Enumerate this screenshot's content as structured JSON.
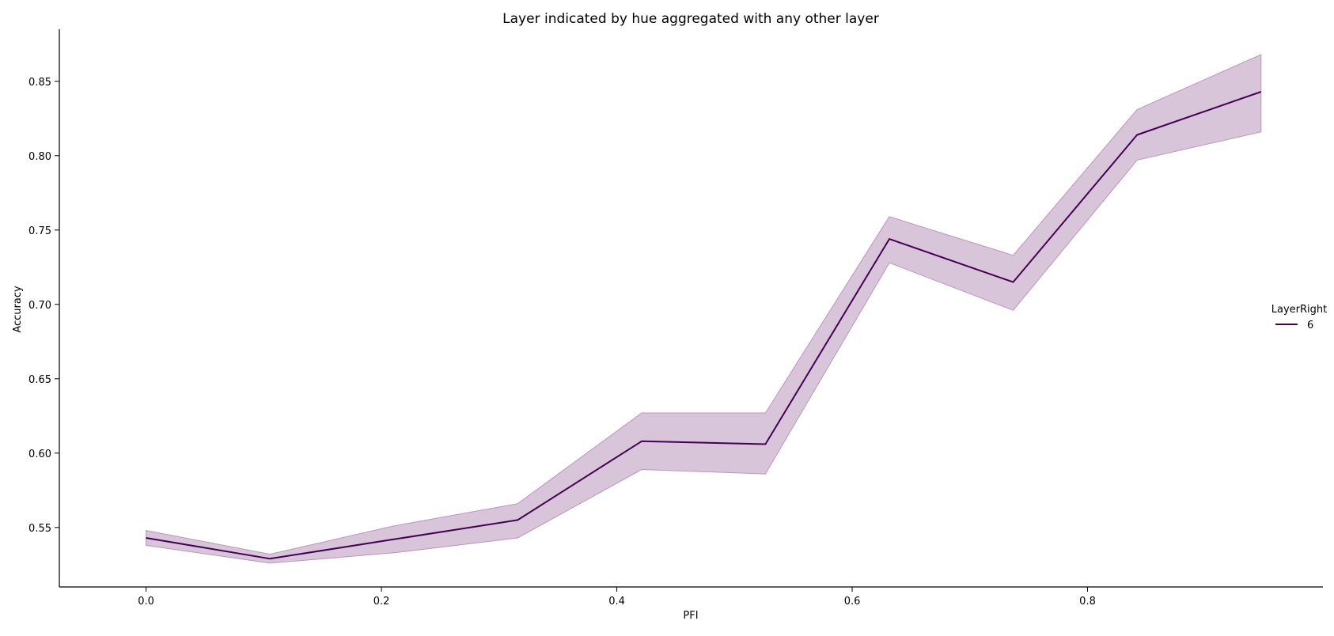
{
  "chart_data": {
    "type": "line",
    "title": "Layer indicated by hue aggregated with any other layer",
    "xlabel": "PFI",
    "ylabel": "Accuracy",
    "xlim": [
      -0.0737,
      1.0
    ],
    "ylim": [
      0.51,
      0.885
    ],
    "xticks": [
      0.0,
      0.2,
      0.4,
      0.6,
      0.8
    ],
    "xtick_labels": [
      "0.0",
      "0.2",
      "0.4",
      "0.6",
      "0.8"
    ],
    "yticks": [
      0.55,
      0.6,
      0.65,
      0.7,
      0.75,
      0.8,
      0.85
    ],
    "ytick_labels": [
      "0.55",
      "0.60",
      "0.65",
      "0.70",
      "0.75",
      "0.80",
      "0.85"
    ],
    "grid": false,
    "legend": {
      "title": "LayerRight",
      "placement": "right"
    },
    "series": [
      {
        "name": "6",
        "color": "#440154",
        "band_color": "#b996bb",
        "x": [
          0.0,
          0.1053,
          0.2105,
          0.3158,
          0.4211,
          0.5263,
          0.6316,
          0.7368,
          0.8421,
          0.9474
        ],
        "y": [
          0.543,
          0.529,
          0.542,
          0.555,
          0.608,
          0.606,
          0.744,
          0.715,
          0.814,
          0.843
        ],
        "ci_low": [
          0.538,
          0.526,
          0.533,
          0.543,
          0.589,
          0.586,
          0.728,
          0.696,
          0.797,
          0.816
        ],
        "ci_high": [
          0.548,
          0.532,
          0.551,
          0.566,
          0.627,
          0.627,
          0.759,
          0.733,
          0.831,
          0.868
        ]
      }
    ]
  }
}
